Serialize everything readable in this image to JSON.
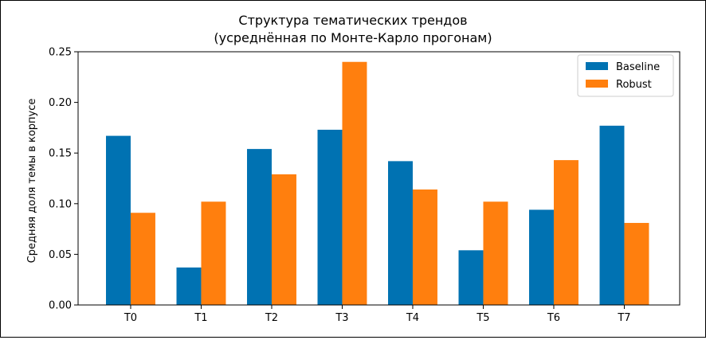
{
  "chart_data": {
    "type": "bar",
    "title": [
      "Структура тематических трендов",
      "(усреднённая по Монте-Карло прогонам)"
    ],
    "xlabel": "",
    "ylabel": "Средняя доля темы в корпусе",
    "categories": [
      "T0",
      "T1",
      "T2",
      "T3",
      "T4",
      "T5",
      "T6",
      "T7"
    ],
    "series": [
      {
        "name": "Baseline",
        "color": "#0072B2",
        "values": [
          0.167,
          0.037,
          0.154,
          0.173,
          0.142,
          0.054,
          0.094,
          0.177
        ]
      },
      {
        "name": "Robust",
        "color": "#FF7F0E",
        "values": [
          0.091,
          0.102,
          0.129,
          0.24,
          0.114,
          0.102,
          0.143,
          0.081
        ]
      }
    ],
    "ylim": [
      0,
      0.25
    ],
    "yticks": [
      0.0,
      0.05,
      0.1,
      0.15,
      0.2,
      0.25
    ],
    "ytick_labels": [
      "0.00",
      "0.05",
      "0.10",
      "0.15",
      "0.20",
      "0.25"
    ],
    "grid": false,
    "legend": "top-right"
  }
}
